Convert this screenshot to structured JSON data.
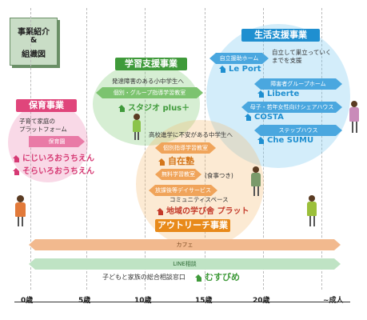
{
  "title_box": {
    "line1": "事業紹介",
    "line2": "&",
    "line3": "組織図"
  },
  "axis": {
    "ticks": [
      "0歳",
      "5歳",
      "10歳",
      "15歳",
      "20歳",
      "~成人"
    ]
  },
  "hoiku": {
    "label": "保育事業",
    "description_1": "子育て家庭の",
    "description_2": "プラットフォーム",
    "band": "保育園",
    "org_1": "にじいろおうちえん",
    "org_2": "そらいろおうちえん"
  },
  "gakushu": {
    "label": "学習支援事業",
    "target": "発達障害のある小中学生へ",
    "band": "個別・グループ指導学習教室",
    "org": "スタジオ plus＋"
  },
  "seikatsu": {
    "label": "生活支援事業",
    "note_1": "自立して巣立っていく",
    "note_2": "までを支援",
    "band_1": "自立援助ホーム",
    "org_1": "Le Port",
    "band_2": "障害者グループホーム",
    "org_2": "Liberte",
    "band_3": "母子・若年女性向けシェアハウス",
    "org_3": "COSTA",
    "band_4": "ステップハウス",
    "org_4": "Che SUMU"
  },
  "outreach": {
    "label": "アウトリーチ事業",
    "target": "高校進学に不安がある中学生へ",
    "band_1": "個別指導学習教室",
    "org_1": "自在塾",
    "band_2": "無料学習教室",
    "band_2_note": "(食事つき)",
    "band_3": "放課後等デイサービス",
    "band_4": "コミュニティスペース",
    "org_4": "地域の学び舎 プラット"
  },
  "cafe": {
    "label": "カフェ"
  },
  "line": {
    "label": "LINE相談",
    "description": "子どもと家族の総合相談窓口",
    "org": "むすびめ"
  },
  "colors": {
    "pink": "#e0457b",
    "green": "#3f9a3a",
    "blue": "#1f8fd0",
    "orange": "#e88a1a",
    "cafe_band": "#f2b98e",
    "line_band": "#bfe3c4"
  }
}
